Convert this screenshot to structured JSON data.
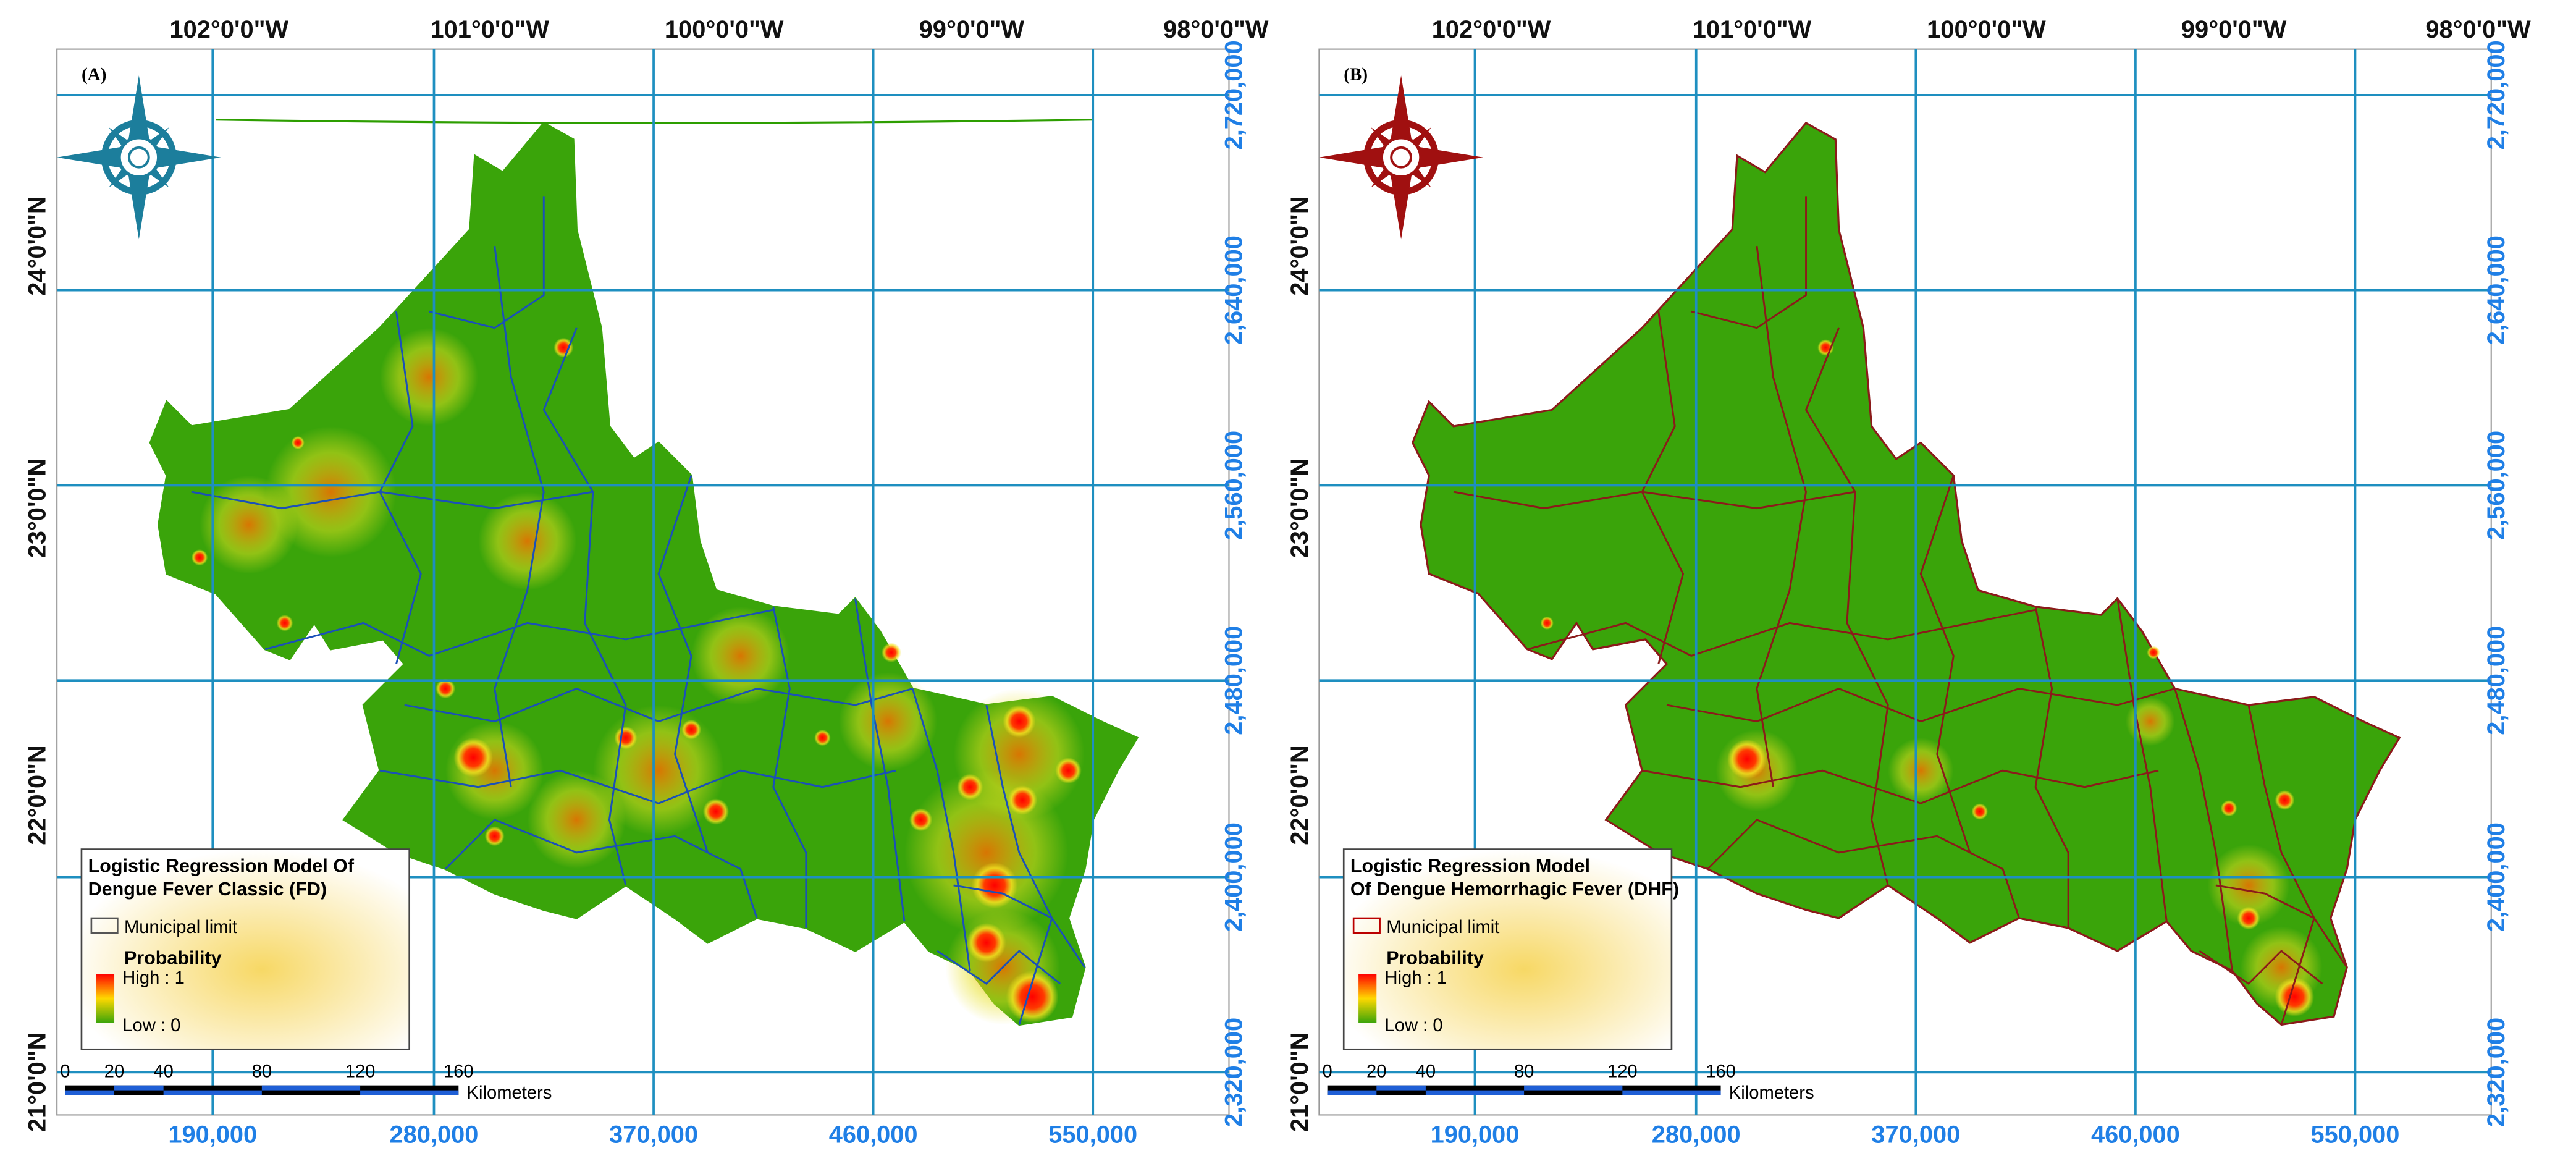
{
  "panels": [
    {
      "label": "(A)",
      "top_labels": [
        "102°0'0\"W",
        "101°0'0\"W",
        "100°0'0\"W",
        "99°0'0\"W",
        "98°0'0\"W"
      ],
      "left_labels": [
        "24°0'0\"N",
        "23°0'0\"N",
        "22°0'0\"N",
        "21°0'0\"N"
      ],
      "right_labels": [
        "2,720,000",
        "2,640,000",
        "2,560,000",
        "2,480,000",
        "2,400,000",
        "2,320,000"
      ],
      "bottom_labels": [
        "190,000",
        "280,000",
        "370,000",
        "460,000",
        "550,000"
      ],
      "legend": {
        "title": [
          "Logistic Regression Model Of",
          "Dengue Fever Classic (FD)"
        ],
        "municipal": "Municipal limit",
        "probability": "Probability",
        "high": "High : 1",
        "low": "Low : 0"
      },
      "scale": {
        "ticks": [
          "0",
          "20",
          "40",
          "80",
          "120",
          "160"
        ],
        "unit": "Kilometers"
      }
    },
    {
      "label": "(B)",
      "top_labels": [
        "102°0'0\"W",
        "101°0'0\"W",
        "100°0'0\"W",
        "99°0'0\"W",
        "98°0'0\"W"
      ],
      "left_labels": [
        "24°0'0\"N",
        "23°0'0\"N",
        "22°0'0\"N",
        "21°0'0\"N"
      ],
      "right_labels": [
        "2,720,000",
        "2,640,000",
        "2,560,000",
        "2,480,000",
        "2,400,000",
        "2,320,000"
      ],
      "bottom_labels": [
        "190,000",
        "280,000",
        "370,000",
        "460,000",
        "550,000"
      ],
      "legend": {
        "title": [
          "Logistic Regression Model",
          "Of Dengue Hemorrhagic Fever (DHF)"
        ],
        "municipal": "Municipal limit",
        "probability": "Probability",
        "high": "High : 1",
        "low": "Low : 0"
      },
      "scale": {
        "ticks": [
          "0",
          "20",
          "40",
          "80",
          "120",
          "160"
        ],
        "unit": "Kilometers"
      }
    }
  ]
}
